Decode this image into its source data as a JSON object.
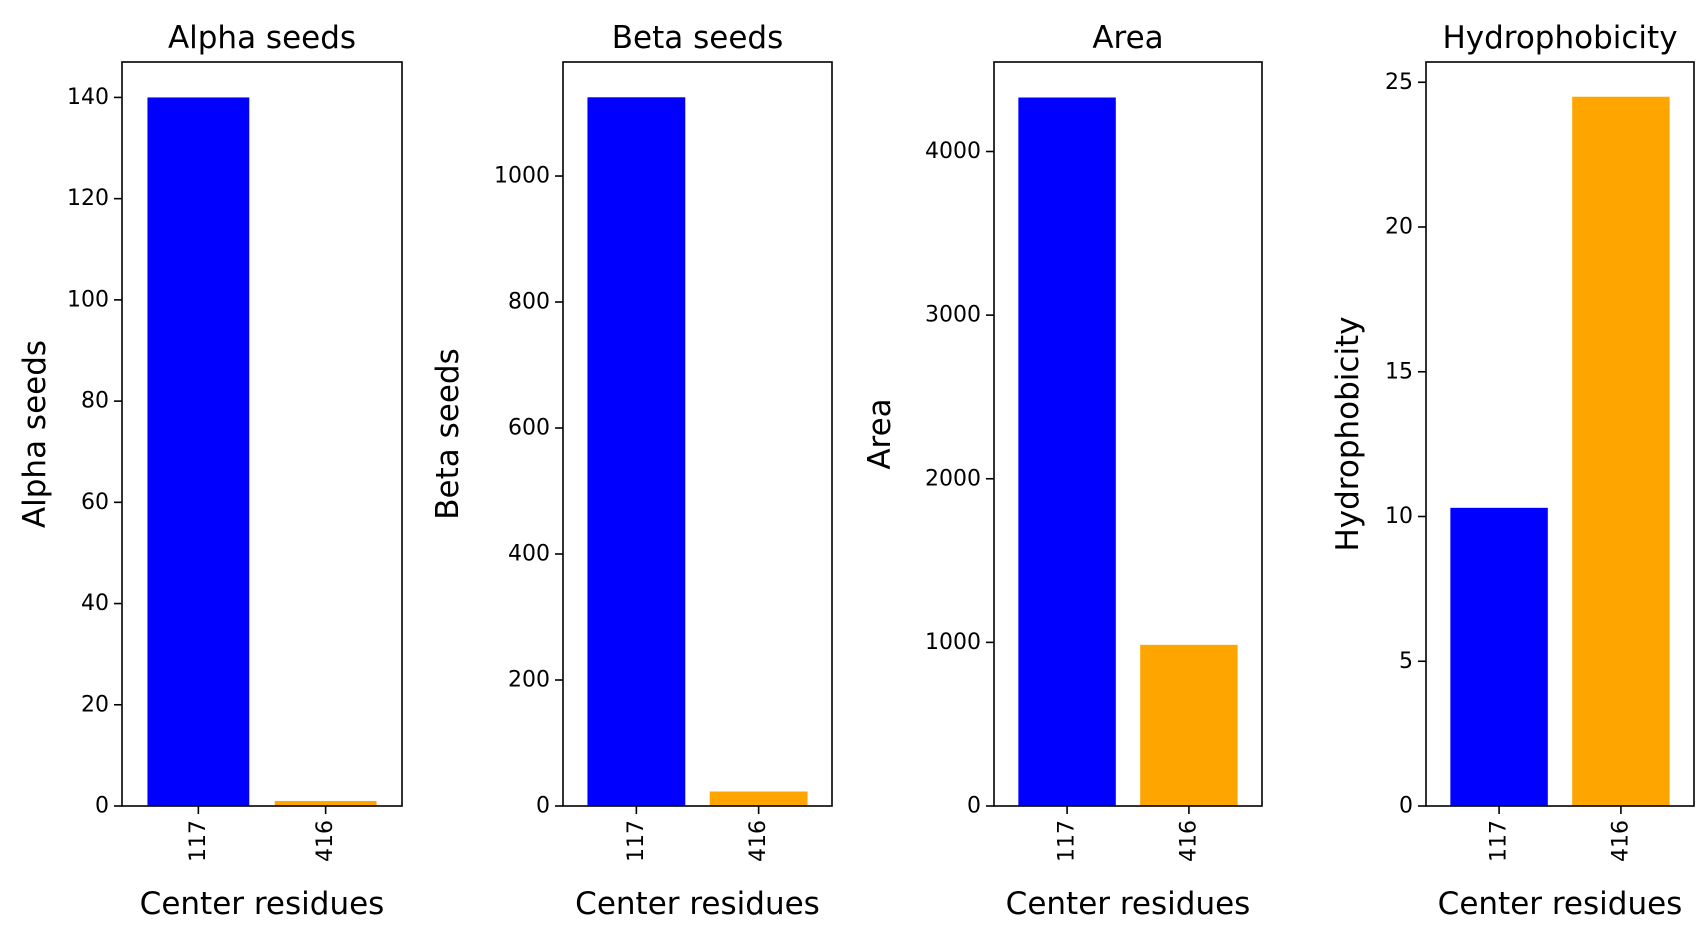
{
  "chart_data": [
    {
      "type": "bar",
      "title": "Alpha seeds",
      "xlabel": "Center residues",
      "ylabel": "Alpha seeds",
      "categories": [
        "117",
        "416"
      ],
      "values": [
        140,
        1
      ],
      "colors": [
        "#0000ff",
        "#ffa500"
      ],
      "ylim": [
        0,
        147
      ],
      "yticks": [
        0,
        20,
        40,
        60,
        80,
        100,
        120,
        140
      ],
      "grid": false
    },
    {
      "type": "bar",
      "title": "Beta seeds",
      "xlabel": "Center residues",
      "ylabel": "Beta seeds",
      "categories": [
        "117",
        "416"
      ],
      "values": [
        1125,
        23
      ],
      "colors": [
        "#0000ff",
        "#ffa500"
      ],
      "ylim": [
        0,
        1181
      ],
      "yticks": [
        0,
        200,
        400,
        600,
        800,
        1000
      ],
      "grid": false
    },
    {
      "type": "bar",
      "title": "Area",
      "xlabel": "Center residues",
      "ylabel": "Area",
      "categories": [
        "117",
        "416"
      ],
      "values": [
        4330,
        985
      ],
      "colors": [
        "#0000ff",
        "#ffa500"
      ],
      "ylim": [
        0,
        4547
      ],
      "yticks": [
        0,
        1000,
        2000,
        3000,
        4000
      ],
      "grid": false
    },
    {
      "type": "bar",
      "title": "Hydrophobicity",
      "xlabel": "Center residues",
      "ylabel": "Hydrophobicity",
      "categories": [
        "117",
        "416"
      ],
      "values": [
        10.3,
        24.5
      ],
      "colors": [
        "#0000ff",
        "#ffa500"
      ],
      "ylim": [
        0,
        25.7
      ],
      "yticks": [
        0,
        5,
        10,
        15,
        20,
        25
      ],
      "grid": false
    }
  ]
}
